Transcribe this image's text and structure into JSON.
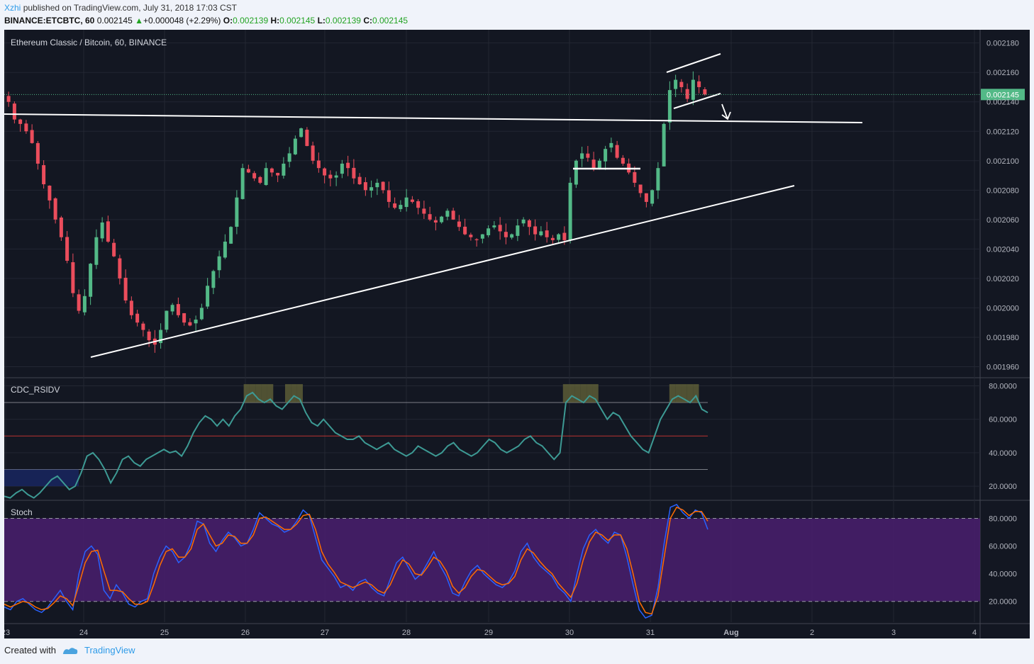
{
  "header": {
    "author": "Xzhi",
    "published_text": "published on TradingView.com, July 31, 2018 17:03 CST",
    "symbol": "BINANCE:ETCBTC, 60",
    "last_price": "0.002145",
    "change": "+0.000048 (+2.29%)",
    "o_label": "O:",
    "o": "0.002139",
    "h_label": "H:",
    "h": "0.002145",
    "l_label": "L:",
    "l": "0.002139",
    "c_label": "C:",
    "c": "0.002145"
  },
  "footer": {
    "created_with": "Created with",
    "brand": "TradingView"
  },
  "colors": {
    "background": "#131722",
    "up": "#53b987",
    "down": "#eb4d5c",
    "rsi_line": "#3d9a94",
    "stoch_k": "#2962ff",
    "stoch_d": "#ff6d00",
    "stoch_band": "#4a1f6e",
    "price_label": "#53b987"
  },
  "chart_data": [
    {
      "type": "candlestick",
      "title": "Ethereum Classic / Bitcoin, 60, BINANCE",
      "y_ticks": [
        "0.002180",
        "0.002160",
        "0.002140",
        "0.002120",
        "0.002100",
        "0.002080",
        "0.002060",
        "0.002040",
        "0.002020",
        "0.002000",
        "0.001980",
        "0.001960"
      ],
      "ylim": [
        0.001953,
        0.002189
      ],
      "x_ticks": [
        "23",
        "24",
        "25",
        "26",
        "27",
        "28",
        "29",
        "30",
        "31",
        "Aug",
        "2",
        "3",
        "4"
      ],
      "last_price_label": "0.002145",
      "approx_closes": [
        0.00214,
        0.002128,
        0.002125,
        0.00212,
        0.002112,
        0.002098,
        0.002084,
        0.002073,
        0.00206,
        0.002048,
        0.002032,
        0.00201,
        0.001998,
        0.002008,
        0.00203,
        0.002048,
        0.002058,
        0.002045,
        0.002035,
        0.00202,
        0.002005,
        0.001995,
        0.00199,
        0.001985,
        0.001978,
        0.001975,
        0.001985,
        0.001998,
        0.002002,
        0.001995,
        0.00199,
        0.001988,
        0.001992,
        0.002,
        0.002015,
        0.002025,
        0.002035,
        0.002045,
        0.002055,
        0.002075,
        0.002095,
        0.002092,
        0.002088,
        0.002085,
        0.002095,
        0.002092,
        0.00209,
        0.002098,
        0.002105,
        0.002115,
        0.002122,
        0.00211,
        0.0021,
        0.002095,
        0.00209,
        0.002088,
        0.00209,
        0.002098,
        0.002095,
        0.002088,
        0.002084,
        0.00208,
        0.002082,
        0.002085,
        0.00208,
        0.002072,
        0.002068,
        0.00207,
        0.002075,
        0.002072,
        0.002068,
        0.002064,
        0.00206,
        0.002058,
        0.002062,
        0.002066,
        0.00206,
        0.002055,
        0.00205,
        0.002048,
        0.002046,
        0.00205,
        0.002054,
        0.002056,
        0.002052,
        0.002048,
        0.00205,
        0.002056,
        0.00206,
        0.002055,
        0.00205,
        0.002052,
        0.002048,
        0.002046,
        0.00205,
        0.002046,
        0.002085,
        0.0021,
        0.002105,
        0.002102,
        0.002095,
        0.0021,
        0.002108,
        0.002112,
        0.002102,
        0.002098,
        0.002092,
        0.002085,
        0.002078,
        0.002072,
        0.00208,
        0.002095,
        0.002125,
        0.002148,
        0.002155,
        0.00215,
        0.002142,
        0.002155,
        0.00215,
        0.002145
      ]
    },
    {
      "type": "line",
      "title": "CDC_RSIDV",
      "y_ticks": [
        "80.0000",
        "60.0000",
        "40.0000",
        "20.0000"
      ],
      "ylim": [
        12,
        84
      ],
      "reference_levels": [
        70,
        50,
        30
      ],
      "approx_values": [
        14,
        13,
        16,
        18,
        15,
        13,
        16,
        20,
        24,
        26,
        22,
        18,
        20,
        28,
        38,
        40,
        36,
        30,
        22,
        28,
        36,
        38,
        34,
        32,
        36,
        38,
        40,
        42,
        40,
        41,
        38,
        44,
        52,
        58,
        62,
        60,
        56,
        60,
        56,
        62,
        66,
        74,
        76,
        72,
        70,
        72,
        68,
        66,
        70,
        74,
        72,
        64,
        58,
        56,
        60,
        56,
        52,
        50,
        48,
        48,
        50,
        46,
        44,
        42,
        44,
        46,
        42,
        40,
        38,
        40,
        44,
        42,
        40,
        38,
        40,
        44,
        46,
        42,
        40,
        38,
        40,
        44,
        48,
        46,
        42,
        40,
        42,
        44,
        48,
        50,
        46,
        44,
        40,
        36,
        40,
        70,
        74,
        72,
        70,
        74,
        72,
        66,
        60,
        64,
        62,
        56,
        50,
        46,
        42,
        40,
        50,
        60,
        66,
        72,
        74,
        72,
        70,
        74,
        66,
        64
      ]
    },
    {
      "type": "line",
      "title": "Stoch",
      "y_ticks": [
        "80.0000",
        "60.0000",
        "40.0000",
        "20.0000"
      ],
      "ylim": [
        5,
        92
      ],
      "reference_levels": [
        80,
        20
      ],
      "series": [
        {
          "approx_values": [
            16,
            14,
            20,
            22,
            18,
            14,
            12,
            16,
            22,
            28,
            20,
            14,
            40,
            56,
            60,
            54,
            28,
            22,
            32,
            26,
            18,
            16,
            20,
            22,
            40,
            52,
            60,
            56,
            48,
            52,
            62,
            78,
            76,
            62,
            56,
            64,
            70,
            66,
            60,
            62,
            72,
            84,
            80,
            76,
            74,
            70,
            72,
            78,
            86,
            82,
            66,
            50,
            44,
            38,
            30,
            32,
            28,
            34,
            36,
            30,
            26,
            24,
            36,
            48,
            52,
            44,
            36,
            40,
            48,
            56,
            46,
            38,
            26,
            24,
            34,
            42,
            46,
            40,
            36,
            32,
            30,
            34,
            42,
            56,
            62,
            52,
            46,
            42,
            38,
            30,
            26,
            20,
            40,
            58,
            68,
            72,
            66,
            62,
            70,
            68,
            52,
            32,
            14,
            8,
            10,
            30,
            62,
            88,
            90,
            84,
            80,
            86,
            84,
            72
          ]
        },
        {
          "approx_values": [
            18,
            16,
            18,
            20,
            19,
            16,
            14,
            15,
            19,
            24,
            22,
            17,
            32,
            48,
            56,
            57,
            42,
            28,
            28,
            27,
            22,
            18,
            18,
            20,
            32,
            46,
            56,
            58,
            52,
            52,
            58,
            72,
            76,
            68,
            60,
            62,
            68,
            67,
            62,
            62,
            68,
            80,
            81,
            78,
            75,
            72,
            72,
            76,
            82,
            83,
            72,
            56,
            47,
            41,
            34,
            32,
            30,
            32,
            34,
            32,
            28,
            26,
            32,
            42,
            50,
            47,
            40,
            39,
            45,
            52,
            49,
            42,
            31,
            26,
            30,
            38,
            43,
            42,
            38,
            34,
            32,
            33,
            38,
            50,
            58,
            55,
            49,
            44,
            40,
            33,
            28,
            23,
            33,
            50,
            63,
            70,
            68,
            64,
            68,
            68,
            58,
            40,
            20,
            12,
            11,
            24,
            52,
            80,
            88,
            86,
            82,
            85,
            85,
            78
          ]
        }
      ]
    }
  ]
}
